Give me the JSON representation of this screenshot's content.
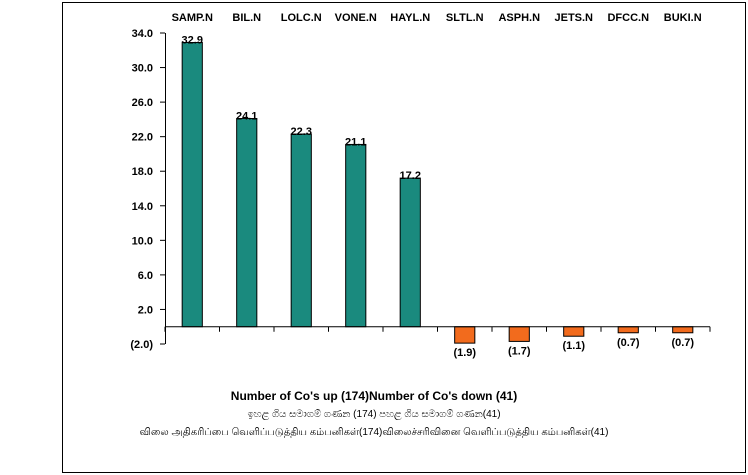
{
  "chart_data": {
    "type": "bar",
    "categories": [
      "SAMP.N",
      "BIL.N",
      "LOLC.N",
      "VONE.N",
      "HAYL.N",
      "SLTL.N",
      "ASPH.N",
      "JETS.N",
      "DFCC.N",
      "BUKI.N"
    ],
    "values": [
      32.9,
      24.1,
      22.3,
      21.1,
      17.2,
      -1.9,
      -1.7,
      -1.1,
      -0.7,
      -0.7
    ],
    "value_labels": [
      "32.9",
      "24.1",
      "22.3",
      "21.1",
      "17.2",
      "(1.9)",
      "(1.7)",
      "(1.1)",
      "(0.7)",
      "(0.7)"
    ],
    "ylim": [
      -2.0,
      34.0
    ],
    "yticks": [
      34.0,
      30.0,
      26.0,
      22.0,
      18.0,
      14.0,
      10.0,
      6.0,
      2.0,
      -2.0
    ],
    "ytick_labels": [
      "34.0",
      "30.0",
      "26.0",
      "22.0",
      "18.0",
      "14.0",
      "10.0",
      "6.0",
      "2.0",
      "(2.0)"
    ],
    "category_axis_position": "top",
    "grid": false,
    "legend": false,
    "colors": {
      "positive": "#1a8a7e",
      "negative": "#f26b1d",
      "bar_outline": "#000000"
    }
  },
  "footer": {
    "line1": "Number of Co's up (174)Number of Co's down  (41)",
    "line2": "ඉහළ ගිය සමාගම් ගණන (174) පහළ ගිය සමාගම් ගණන(41)",
    "line3": "விலை அதிகரிப்பை வெளிப்படுத்திய கம்பனிகள்(174)விலைச்சரிவினை வெளிப்படுத்திய கம்பனிகள்(41)"
  }
}
